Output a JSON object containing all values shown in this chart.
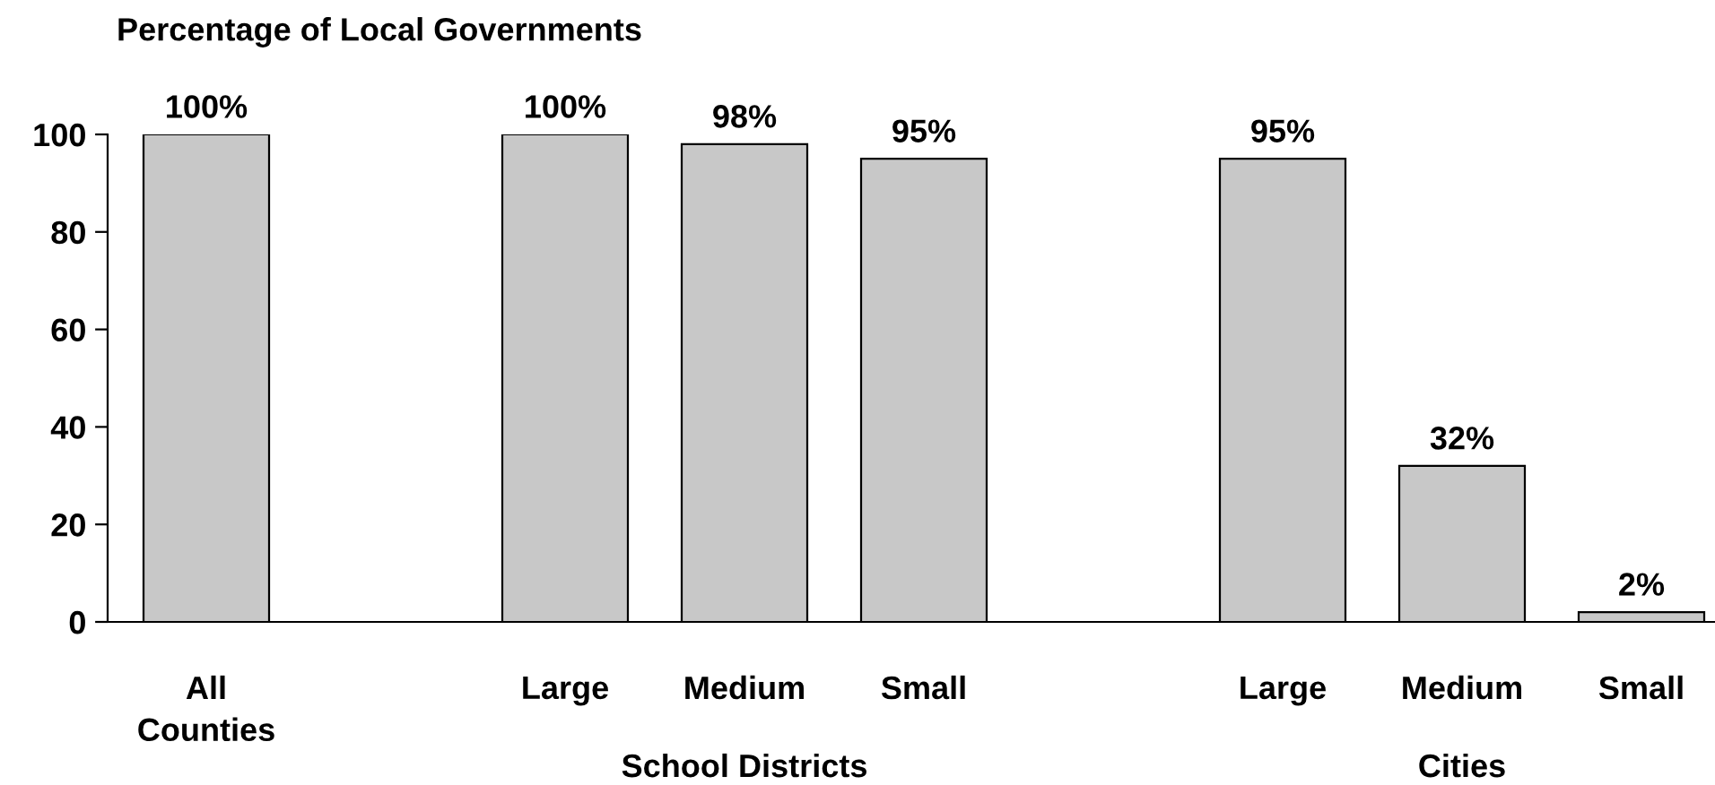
{
  "chart_data": {
    "type": "bar",
    "ylabel": "Percentage of Local Governments",
    "categories": [
      "All\nCounties",
      null,
      "Large",
      "Medium",
      "Small",
      null,
      "Large",
      "Medium",
      "Small"
    ],
    "values": [
      100,
      null,
      100,
      98,
      95,
      null,
      95,
      32,
      2
    ],
    "value_labels": [
      "100%",
      null,
      "100%",
      "98%",
      "95%",
      null,
      "95%",
      "32%",
      "2%"
    ],
    "color": "#c8c8c8",
    "ylim": [
      0,
      100
    ],
    "yticks": [
      0,
      20,
      40,
      60,
      80,
      100
    ],
    "grid": false,
    "legend": false,
    "annotations": [
      "School Districts",
      "Cities"
    ]
  }
}
